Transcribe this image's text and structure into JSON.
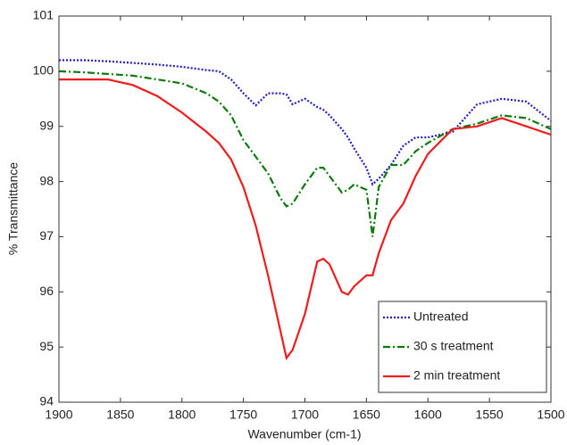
{
  "chart_data": {
    "type": "line",
    "xlabel": "Wavenumber (cm-1)",
    "ylabel": "% Transmittance",
    "x": [
      1900,
      1880,
      1860,
      1840,
      1820,
      1800,
      1780,
      1770,
      1760,
      1750,
      1740,
      1730,
      1720,
      1715,
      1710,
      1700,
      1690,
      1685,
      1680,
      1670,
      1665,
      1660,
      1650,
      1645,
      1640,
      1630,
      1620,
      1610,
      1600,
      1580,
      1560,
      1540,
      1520,
      1500
    ],
    "series": [
      {
        "name": "Untreated",
        "color": "#1f1fbf",
        "style": "dotted",
        "values": [
          100.2,
          100.2,
          100.18,
          100.15,
          100.12,
          100.08,
          100.02,
          100.0,
          99.85,
          99.6,
          99.38,
          99.6,
          99.6,
          99.58,
          99.4,
          99.5,
          99.35,
          99.3,
          99.2,
          98.95,
          98.8,
          98.6,
          98.25,
          97.95,
          98.05,
          98.3,
          98.65,
          98.8,
          98.8,
          98.9,
          99.4,
          99.5,
          99.45,
          99.1
        ]
      },
      {
        "name": "30 s treatment",
        "color": "#0a7a0a",
        "style": "dashdot",
        "values": [
          100.0,
          99.98,
          99.95,
          99.92,
          99.85,
          99.78,
          99.6,
          99.45,
          99.2,
          98.75,
          98.45,
          98.15,
          97.7,
          97.55,
          97.6,
          97.95,
          98.25,
          98.25,
          98.1,
          97.8,
          97.85,
          97.95,
          97.85,
          97.0,
          97.9,
          98.3,
          98.3,
          98.55,
          98.7,
          98.95,
          99.05,
          99.2,
          99.15,
          98.95
        ]
      },
      {
        "name": "2 min treatment",
        "color": "#ee1c1c",
        "style": "solid",
        "values": [
          99.85,
          99.85,
          99.85,
          99.75,
          99.55,
          99.25,
          98.9,
          98.7,
          98.4,
          97.9,
          97.2,
          96.3,
          95.3,
          94.8,
          94.95,
          95.6,
          96.55,
          96.6,
          96.5,
          96.0,
          95.95,
          96.1,
          96.3,
          96.3,
          96.7,
          97.3,
          97.6,
          98.1,
          98.5,
          98.95,
          99.0,
          99.15,
          99.0,
          98.85
        ]
      }
    ],
    "xlim": [
      1900,
      1500
    ],
    "ylim": [
      94,
      101
    ],
    "xticks": [
      1900,
      1850,
      1800,
      1750,
      1700,
      1650,
      1600,
      1550,
      1500
    ],
    "yticks": [
      94,
      95,
      96,
      97,
      98,
      99,
      100,
      101
    ],
    "legend": "lower right"
  }
}
